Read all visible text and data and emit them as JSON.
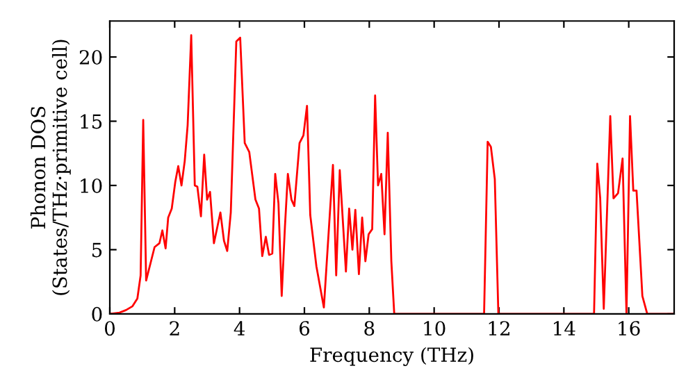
{
  "chart_data": {
    "type": "line",
    "xlabel": "Frequency (THz)",
    "ylabel": "Phonon DOS\n(States/THz·primitive cell)",
    "xlim": [
      0,
      17.4
    ],
    "ylim": [
      0,
      22.8
    ],
    "xticks": [
      0,
      2,
      4,
      6,
      8,
      10,
      12,
      14,
      16
    ],
    "yticks": [
      0,
      5,
      10,
      15,
      20
    ],
    "grid": false,
    "marker": "none",
    "line_style": "solid",
    "series": [
      {
        "color": "#ff0000",
        "x": [
          0,
          0.3,
          0.5,
          0.7,
          0.85,
          0.95,
          1.03,
          1.12,
          1.38,
          1.53,
          1.62,
          1.72,
          1.8,
          1.91,
          2.02,
          2.11,
          2.21,
          2.31,
          2.4,
          2.51,
          2.62,
          2.7,
          2.81,
          2.91,
          3.0,
          3.09,
          3.21,
          3.41,
          3.52,
          3.62,
          3.73,
          3.9,
          4.02,
          4.16,
          4.3,
          4.49,
          4.6,
          4.7,
          4.81,
          4.91,
          5.01,
          5.1,
          5.2,
          5.3,
          5.4,
          5.49,
          5.6,
          5.69,
          5.85,
          5.97,
          6.08,
          6.18,
          6.37,
          6.6,
          6.88,
          6.98,
          7.09,
          7.28,
          7.38,
          7.48,
          7.57,
          7.68,
          7.78,
          7.88,
          7.98,
          8.09,
          8.18,
          8.27,
          8.37,
          8.47,
          8.57,
          8.68,
          8.77,
          11.54,
          11.65,
          11.75,
          11.87,
          11.98,
          14.93,
          15.03,
          15.12,
          15.23,
          15.43,
          15.53,
          15.67,
          15.81,
          15.93,
          16.04,
          16.14,
          16.24,
          16.42,
          16.57,
          17.4
        ],
        "values": [
          0,
          0.1,
          0.3,
          0.6,
          1.2,
          3,
          15.1,
          2.6,
          5.2,
          5.5,
          6.5,
          5.1,
          7.5,
          8.2,
          10.3,
          11.5,
          10.0,
          11.9,
          14.7,
          21.7,
          10.0,
          9.9,
          7.6,
          12.4,
          8.9,
          9.5,
          5.5,
          7.9,
          5.7,
          4.9,
          7.9,
          21.2,
          21.5,
          13.3,
          12.6,
          8.9,
          8.2,
          4.5,
          6.0,
          4.6,
          4.7,
          10.9,
          8.6,
          1.4,
          6.8,
          10.9,
          8.9,
          8.4,
          13.3,
          13.9,
          16.2,
          7.7,
          3.7,
          0.5,
          11.6,
          3.0,
          11.2,
          3.3,
          8.2,
          5.0,
          8.1,
          3.1,
          7.5,
          4.1,
          6.2,
          6.6,
          17.0,
          10.0,
          10.9,
          6.2,
          14.1,
          4.1,
          0,
          0,
          13.4,
          13.0,
          10.5,
          0,
          0,
          11.7,
          9.0,
          0.4,
          15.4,
          9.0,
          9.4,
          12.1,
          0,
          15.4,
          9.6,
          9.6,
          1.4,
          0,
          0
        ]
      }
    ]
  }
}
